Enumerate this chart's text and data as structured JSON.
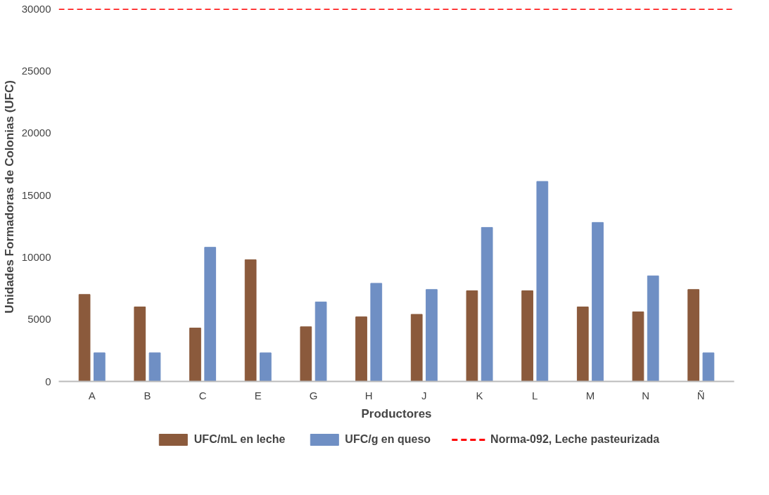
{
  "chart_data": {
    "type": "bar",
    "xlabel": "Productores",
    "ylabel": "Unidades Formadoras de Colonias  (UFC)",
    "categories": [
      "A",
      "B",
      "C",
      "E",
      "G",
      "H",
      "J",
      "K",
      "L",
      "M",
      "N",
      "Ñ"
    ],
    "series": [
      {
        "name": "UFC/mL en leche",
        "color": "#8b5a3c",
        "values": [
          7000,
          6000,
          4300,
          9800,
          4400,
          5200,
          5400,
          7300,
          7300,
          6000,
          5600,
          7400
        ]
      },
      {
        "name": "UFC/g en queso",
        "color": "#6f8fc4",
        "values": [
          2300,
          2300,
          10800,
          2300,
          6400,
          7900,
          7400,
          12400,
          16100,
          12800,
          8500,
          2300
        ]
      }
    ],
    "ref_lines": [
      {
        "axis": "y",
        "value": 30000,
        "label": "Norma-092, Leche pasteurizada",
        "color": "#ff0000",
        "line_style": "dashed"
      }
    ],
    "ylim": [
      0,
      30000
    ],
    "yticks": [
      0,
      5000,
      10000,
      15000,
      20000,
      25000,
      30000
    ],
    "grid": false,
    "legend": "bottom"
  }
}
